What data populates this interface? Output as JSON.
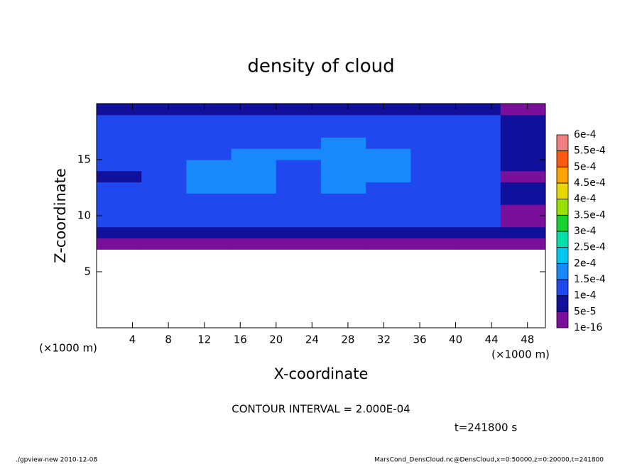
{
  "chart_data": {
    "type": "heatmap",
    "title": "density of cloud",
    "xlabel": "X-coordinate",
    "ylabel": "Z-coordinate",
    "x_unit": "(×1000 m)",
    "y_unit": "(×1000 m)",
    "xlim": [
      0,
      50
    ],
    "ylim": [
      0,
      20
    ],
    "xticks": [
      4,
      8,
      12,
      16,
      20,
      24,
      28,
      32,
      36,
      40,
      44,
      48
    ],
    "yticks": [
      5,
      10,
      15
    ],
    "x": [
      2.5,
      7.5,
      12.5,
      17.5,
      22.5,
      27.5,
      32.5,
      37.5,
      42.5,
      47.5
    ],
    "z": [
      7.5,
      8.5,
      9.5,
      10.5,
      11.5,
      12.5,
      13.5,
      14.5,
      15.5,
      16.5,
      17.5,
      18.5,
      19.5
    ],
    "values": [
      [
        2e-05,
        2e-05,
        2e-05,
        2e-05,
        2e-05,
        2e-05,
        2e-05,
        2e-05,
        2e-05,
        2e-05
      ],
      [
        6e-05,
        6e-05,
        7e-05,
        7e-05,
        7e-05,
        7e-05,
        7e-05,
        6e-05,
        6e-05,
        6e-05
      ],
      [
        0.00011,
        0.00011,
        0.00012,
        0.00012,
        0.00012,
        0.00012,
        0.00012,
        0.00011,
        0.00011,
        3e-05
      ],
      [
        0.00012,
        0.00013,
        0.00013,
        0.00013,
        0.00013,
        0.00013,
        0.00013,
        0.00012,
        0.00012,
        3e-05
      ],
      [
        0.00013,
        0.00013,
        0.00014,
        0.00014,
        0.00014,
        0.00014,
        0.00014,
        0.00013,
        0.00012,
        8e-05
      ],
      [
        0.00012,
        0.00014,
        0.00015,
        0.00015,
        0.00014,
        0.00015,
        0.00014,
        0.00013,
        0.00012,
        9e-05
      ],
      [
        7e-05,
        0.00014,
        0.00016,
        0.00016,
        0.00014,
        0.00016,
        0.00016,
        0.00014,
        0.00012,
        3e-05
      ],
      [
        0.00012,
        0.00013,
        0.00015,
        0.00015,
        0.00014,
        0.00016,
        0.00016,
        0.00014,
        0.00012,
        9e-05
      ],
      [
        0.00012,
        0.00013,
        0.00014,
        0.00016,
        0.00015,
        0.00016,
        0.00015,
        0.00014,
        0.00012,
        9e-05
      ],
      [
        0.00011,
        0.00013,
        0.00014,
        0.00014,
        0.00014,
        0.00015,
        0.00014,
        0.00013,
        0.00011,
        9e-05
      ],
      [
        0.00011,
        0.00012,
        0.00013,
        0.00013,
        0.00013,
        0.00013,
        0.00013,
        0.00012,
        0.00011,
        9e-05
      ],
      [
        0.0001,
        0.00011,
        0.00012,
        0.00012,
        0.00012,
        0.00012,
        0.00012,
        0.00011,
        0.0001,
        7e-05
      ],
      [
        6e-05,
        8e-05,
        8e-05,
        9e-05,
        9e-05,
        9e-05,
        9e-05,
        8e-05,
        6e-05,
        3e-05
      ]
    ],
    "levels": [
      {
        "value": 1e-16,
        "label": "1e-16"
      },
      {
        "value": 5e-05,
        "label": "5e-5"
      },
      {
        "value": 0.0001,
        "label": "1e-4"
      },
      {
        "value": 0.00015,
        "label": "1.5e-4"
      },
      {
        "value": 0.0002,
        "label": "2e-4"
      },
      {
        "value": 0.00025,
        "label": "2.5e-4"
      },
      {
        "value": 0.0003,
        "label": "3e-4"
      },
      {
        "value": 0.00035,
        "label": "3.5e-4"
      },
      {
        "value": 0.0004,
        "label": "4e-4"
      },
      {
        "value": 0.00045,
        "label": "4.5e-4"
      },
      {
        "value": 0.0005,
        "label": "5e-4"
      },
      {
        "value": 0.00055,
        "label": "5.5e-4"
      },
      {
        "value": 0.0006,
        "label": "6e-4"
      }
    ],
    "colors": [
      "#7a0f9c",
      "#10109a",
      "#2048ee",
      "#1888fa",
      "#00c8f0",
      "#00e0a8",
      "#18d030",
      "#98e000",
      "#e8d800",
      "#ffa400",
      "#ff5810",
      "#f08080"
    ],
    "contour_interval": "CONTOUR INTERVAL = 2.000E-04",
    "time": "t=241800 s",
    "footer_left": "./gpview-new  2010-12-08",
    "footer_right": "MarsCond_DensCloud.nc@DensCloud,x=0:50000,z=0:20000,t=241800"
  }
}
